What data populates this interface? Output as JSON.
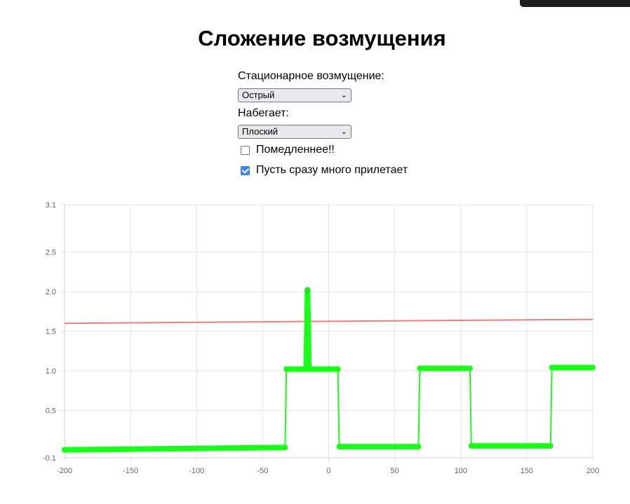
{
  "page": {
    "title": "Сложение возмущения"
  },
  "controls": {
    "stationary_label": "Стационарное возмущение:",
    "stationary_value": "Острый",
    "incoming_label": "Набегает:",
    "incoming_value": "Плоский",
    "slower_label": "Помедленнее!!",
    "slower_checked": false,
    "many_label": "Пусть сразу много прилетает",
    "many_checked": true
  },
  "chart_data": {
    "type": "line",
    "grid": true,
    "xlim": [
      -200,
      200
    ],
    "ylim": [
      -0.1,
      3.1
    ],
    "x_ticks": [
      "-200",
      "-150",
      "-100",
      "-50",
      "0",
      "50",
      "100",
      "150",
      "200"
    ],
    "y_ticks": [
      "-0.1",
      "0.5",
      "1.0",
      "1.5",
      "2.0",
      "2.5",
      "3.1"
    ],
    "y_tick_values": [
      -0.1,
      0.5,
      1.0,
      1.5,
      2.0,
      2.5,
      3.1
    ],
    "series": [
      {
        "color": "#e88080",
        "points": [
          [
            -200,
            1.6
          ],
          [
            200,
            1.65
          ]
        ]
      },
      {
        "color": "#19ff19",
        "points": [
          [
            -200,
            0.0
          ],
          [
            -33,
            0.03
          ],
          [
            -32,
            1.02
          ],
          [
            -17,
            1.02
          ],
          [
            -16,
            2.02
          ],
          [
            -15,
            1.02
          ],
          [
            7,
            1.02
          ],
          [
            8,
            0.04
          ],
          [
            68,
            0.04
          ],
          [
            69,
            1.03
          ],
          [
            107,
            1.03
          ],
          [
            108,
            0.05
          ],
          [
            168,
            0.05
          ],
          [
            169,
            1.04
          ],
          [
            200,
            1.04
          ]
        ],
        "thick_segments": [
          [
            -200,
            -33
          ],
          [
            -32,
            7
          ],
          [
            8,
            68
          ],
          [
            69,
            107
          ],
          [
            108,
            168
          ],
          [
            169,
            200
          ]
        ],
        "markers": [
          [
            -16,
            2.02
          ]
        ]
      }
    ]
  }
}
